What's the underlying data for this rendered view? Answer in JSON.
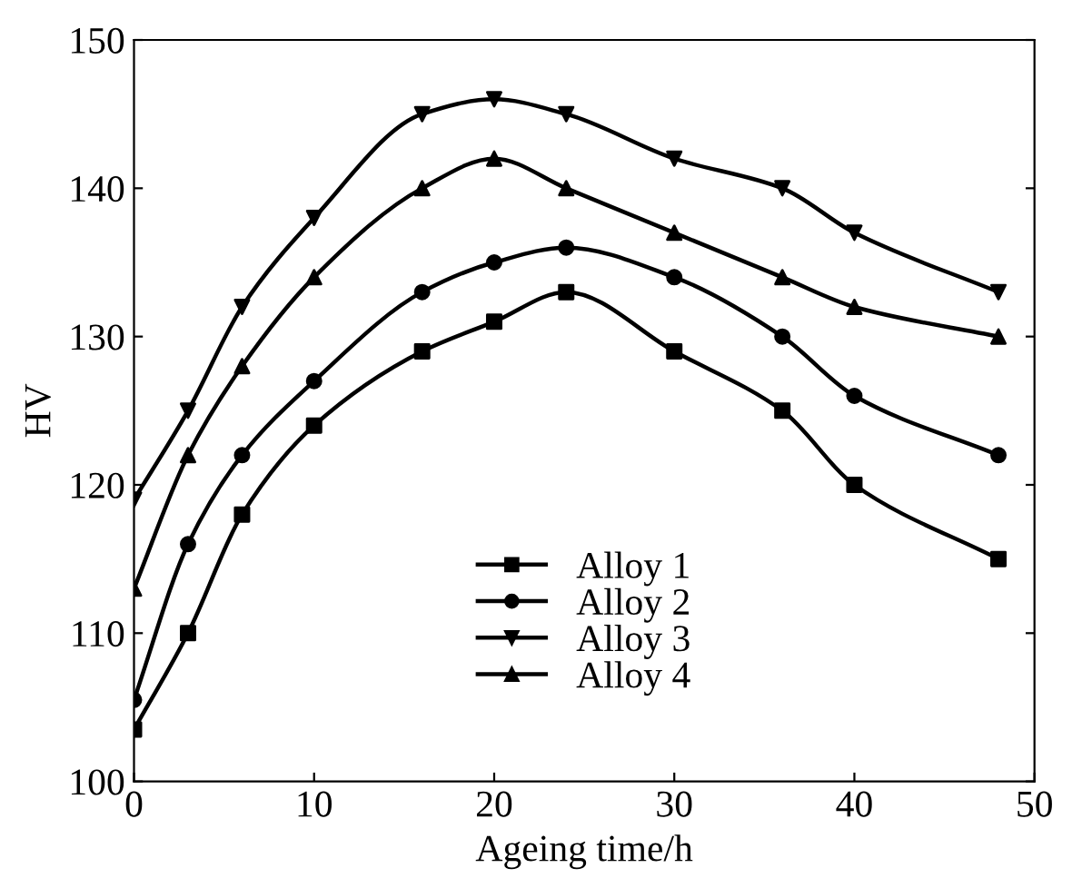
{
  "chart_data": {
    "type": "line",
    "xlabel": "Ageing time/h",
    "ylabel": "HV",
    "x": [
      0,
      3,
      6,
      10,
      16,
      20,
      24,
      30,
      36,
      40,
      48
    ],
    "series": [
      {
        "name": "Alloy 1",
        "color": "#000000",
        "marker": "square",
        "values": [
          103.5,
          110,
          118,
          124,
          129,
          131,
          133,
          129,
          125,
          120,
          115
        ]
      },
      {
        "name": "Alloy 2",
        "color": "#000000",
        "marker": "circle",
        "values": [
          105.5,
          116,
          122,
          127,
          133,
          135,
          136,
          134,
          130,
          126,
          122
        ]
      },
      {
        "name": "Alloy 3",
        "color": "#000000",
        "marker": "triangle_down",
        "values": [
          119,
          125,
          132,
          138,
          145,
          146,
          145,
          142,
          140,
          137,
          133
        ]
      },
      {
        "name": "Alloy 4",
        "color": "#000000",
        "marker": "triangle",
        "values": [
          113,
          122,
          128,
          134,
          140,
          142,
          140,
          137,
          134,
          132,
          130
        ]
      }
    ],
    "xlim": [
      0,
      50
    ],
    "xticks": [
      0,
      10,
      20,
      30,
      40,
      50
    ],
    "ylim": [
      100,
      150
    ],
    "yticks": [
      100,
      110,
      120,
      130,
      140,
      150
    ],
    "legend": "bottom",
    "grid": false,
    "line_style": "solid"
  }
}
